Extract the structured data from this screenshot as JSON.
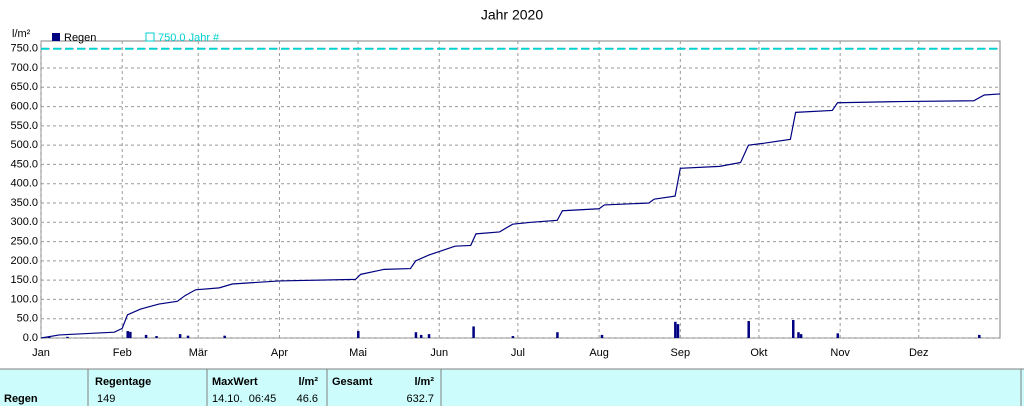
{
  "chart_data": {
    "type": "bar",
    "title": "Jahr 2020",
    "ylabel": "l/m²",
    "xlim": [
      0,
      366
    ],
    "ylim": [
      0,
      770
    ],
    "xticks": [
      {
        "value": 0,
        "label": "Jan"
      },
      {
        "value": 31,
        "label": "Feb"
      },
      {
        "value": 60,
        "label": "Mär"
      },
      {
        "value": 91,
        "label": "Apr"
      },
      {
        "value": 121,
        "label": "Mai"
      },
      {
        "value": 152,
        "label": "Jun"
      },
      {
        "value": 182,
        "label": "Jul"
      },
      {
        "value": 213,
        "label": "Aug"
      },
      {
        "value": 244,
        "label": "Sep"
      },
      {
        "value": 274,
        "label": "Okt"
      },
      {
        "value": 305,
        "label": "Nov"
      },
      {
        "value": 335,
        "label": "Dez"
      }
    ],
    "yticks": [
      {
        "value": 0,
        "label": "0.0"
      },
      {
        "value": 50,
        "label": "50.0"
      },
      {
        "value": 100,
        "label": "100.0"
      },
      {
        "value": 150,
        "label": "150.0"
      },
      {
        "value": 200,
        "label": "200.0"
      },
      {
        "value": 250,
        "label": "250.0"
      },
      {
        "value": 300,
        "label": "300.0"
      },
      {
        "value": 350,
        "label": "350.0"
      },
      {
        "value": 400,
        "label": "400.0"
      },
      {
        "value": 450,
        "label": "450.0"
      },
      {
        "value": 500,
        "label": "500.0"
      },
      {
        "value": 550,
        "label": "550.0"
      },
      {
        "value": 600,
        "label": "600.0"
      },
      {
        "value": 650,
        "label": "650.0"
      },
      {
        "value": 700,
        "label": "700.0"
      },
      {
        "value": 750,
        "label": "750.0"
      }
    ],
    "grid": true,
    "series": [
      {
        "name": "Regen",
        "color": "#000080",
        "x": [
          3,
          10,
          33,
          34,
          40,
          44,
          53,
          56,
          70,
          121,
          143,
          145,
          148,
          165,
          180,
          197,
          214,
          242,
          243,
          270,
          287,
          289,
          290,
          304,
          358
        ],
        "values": [
          3,
          3,
          18,
          16,
          8,
          5,
          10,
          6,
          6,
          18,
          15,
          8,
          10,
          30,
          5,
          15,
          8,
          42,
          36,
          44,
          46.6,
          15,
          10,
          12,
          8
        ]
      }
    ],
    "cumulative": {
      "color": "#000080",
      "x": [
        0,
        7,
        28,
        31,
        33,
        38,
        45,
        52,
        55,
        59,
        68,
        73,
        91,
        120,
        122,
        131,
        141,
        143,
        148,
        158,
        164,
        166,
        175,
        180,
        187,
        197,
        199,
        213,
        215,
        232,
        234,
        242,
        244,
        259,
        267,
        270,
        276,
        286,
        288,
        302,
        304,
        328,
        356,
        360,
        366
      ],
      "values": [
        0,
        8,
        15,
        25,
        60,
        75,
        88,
        95,
        110,
        125,
        130,
        140,
        148,
        152,
        165,
        178,
        180,
        200,
        215,
        238,
        240,
        270,
        275,
        295,
        300,
        305,
        330,
        335,
        345,
        350,
        360,
        368,
        440,
        445,
        455,
        500,
        505,
        515,
        585,
        590,
        610,
        613,
        615,
        630,
        632.7
      ]
    },
    "reference": {
      "value": 750,
      "label": "750.0 Jahr #",
      "color": "#00d0d0"
    }
  },
  "table": {
    "headers": [
      "Regentage",
      "MaxWert",
      "l/m²",
      "Gesamt",
      "l/m²"
    ],
    "rows": [
      [
        "Regen",
        "149",
        "14.10.  06:45",
        "46.6",
        "632.7"
      ]
    ]
  }
}
